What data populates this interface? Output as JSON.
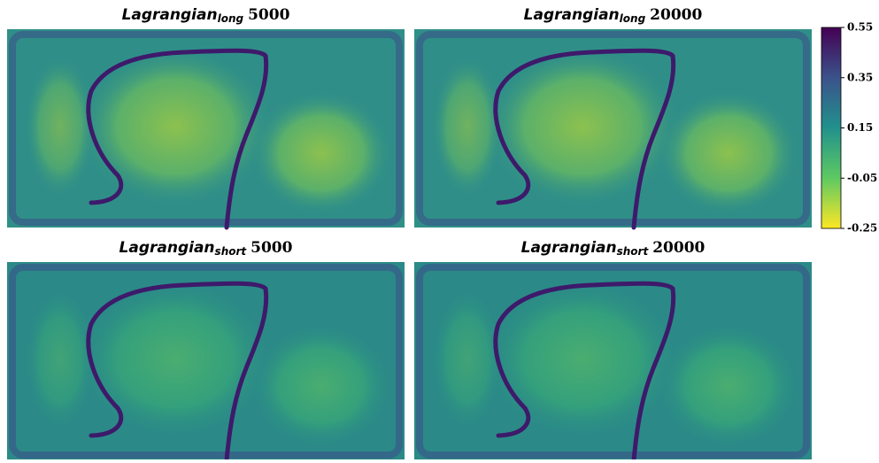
{
  "chart_data": {
    "type": "heatmap",
    "panels": [
      {
        "title": {
          "main": "Lagrangian",
          "sub": "long",
          "suffix": "5000"
        }
      },
      {
        "title": {
          "main": "Lagrangian",
          "sub": "long",
          "suffix": "20000"
        }
      },
      {
        "title": {
          "main": "Lagrangian",
          "sub": "short",
          "suffix": "5000"
        }
      },
      {
        "title": {
          "main": "Lagrangian",
          "sub": "short",
          "suffix": "20000"
        }
      }
    ],
    "clim": [
      -0.25,
      0.55
    ],
    "cticks": [
      0.55,
      0.35,
      0.15,
      -0.05,
      -0.25
    ]
  }
}
